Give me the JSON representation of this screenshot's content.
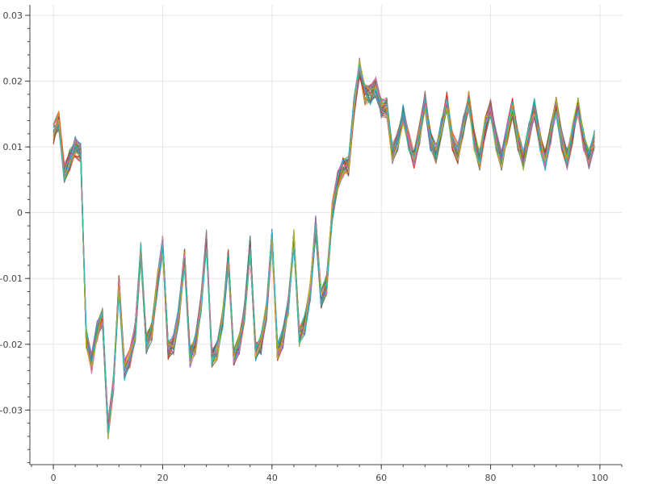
{
  "chart_data": {
    "type": "line",
    "title": "",
    "xlabel": "",
    "ylabel": "",
    "xlim": [
      -4.3,
      104
    ],
    "ylim": [
      -0.0383,
      0.0316
    ],
    "grid": true,
    "legend": "none",
    "x_ticks": [
      {
        "value": 0,
        "label": "0"
      },
      {
        "value": 20,
        "label": "20"
      },
      {
        "value": 40,
        "label": "40"
      },
      {
        "value": 60,
        "label": "60"
      },
      {
        "value": 80,
        "label": "80"
      },
      {
        "value": 100,
        "label": "100"
      }
    ],
    "y_ticks": [
      {
        "value": 0.03,
        "label": "0.03"
      },
      {
        "value": 0.02,
        "label": "0.02"
      },
      {
        "value": 0.01,
        "label": "0.01"
      },
      {
        "value": 0,
        "label": "0"
      },
      {
        "value": -0.01,
        "label": "-0.01"
      },
      {
        "value": -0.02,
        "label": "-0.02"
      },
      {
        "value": -0.03,
        "label": "-0.03"
      }
    ],
    "x_minor_step": 4,
    "y_minor_step": 0.002,
    "x_start": 0,
    "x_end": 99,
    "series_count": 40,
    "colors": [
      "#1f77b4",
      "#ff7f0e",
      "#2ca02c",
      "#d62728",
      "#9467bd",
      "#8c564b",
      "#e377c2",
      "#7f7f7f",
      "#bcbd22",
      "#17becf",
      "#e5ae38",
      "#6d904f",
      "#fc4f30",
      "#30a2da",
      "#8b8b8b"
    ],
    "base_values": [
      0.012,
      0.014,
      0.006,
      0.008,
      0.01,
      0.009,
      -0.019,
      -0.023,
      -0.018,
      -0.016,
      -0.033,
      -0.026,
      -0.011,
      -0.024,
      -0.022,
      -0.018,
      -0.006,
      -0.02,
      -0.018,
      -0.011,
      -0.005,
      -0.021,
      -0.02,
      -0.015,
      -0.007,
      -0.022,
      -0.02,
      -0.014,
      -0.004,
      -0.022,
      -0.021,
      -0.016,
      -0.007,
      -0.022,
      -0.02,
      -0.015,
      -0.005,
      -0.021,
      -0.02,
      -0.015,
      -0.004,
      -0.021,
      -0.019,
      -0.014,
      -0.004,
      -0.019,
      -0.017,
      -0.012,
      -0.002,
      -0.013,
      -0.011,
      0.0,
      0.005,
      0.007,
      0.007,
      0.016,
      0.022,
      0.018,
      0.018,
      0.019,
      0.016,
      0.016,
      0.009,
      0.011,
      0.015,
      0.011,
      0.008,
      0.012,
      0.017,
      0.011,
      0.009,
      0.013,
      0.017,
      0.011,
      0.009,
      0.013,
      0.017,
      0.011,
      0.008,
      0.013,
      0.016,
      0.011,
      0.008,
      0.012,
      0.016,
      0.011,
      0.008,
      0.012,
      0.016,
      0.011,
      0.008,
      0.012,
      0.016,
      0.011,
      0.008,
      0.012,
      0.016,
      0.011,
      0.008,
      0.011
    ]
  }
}
